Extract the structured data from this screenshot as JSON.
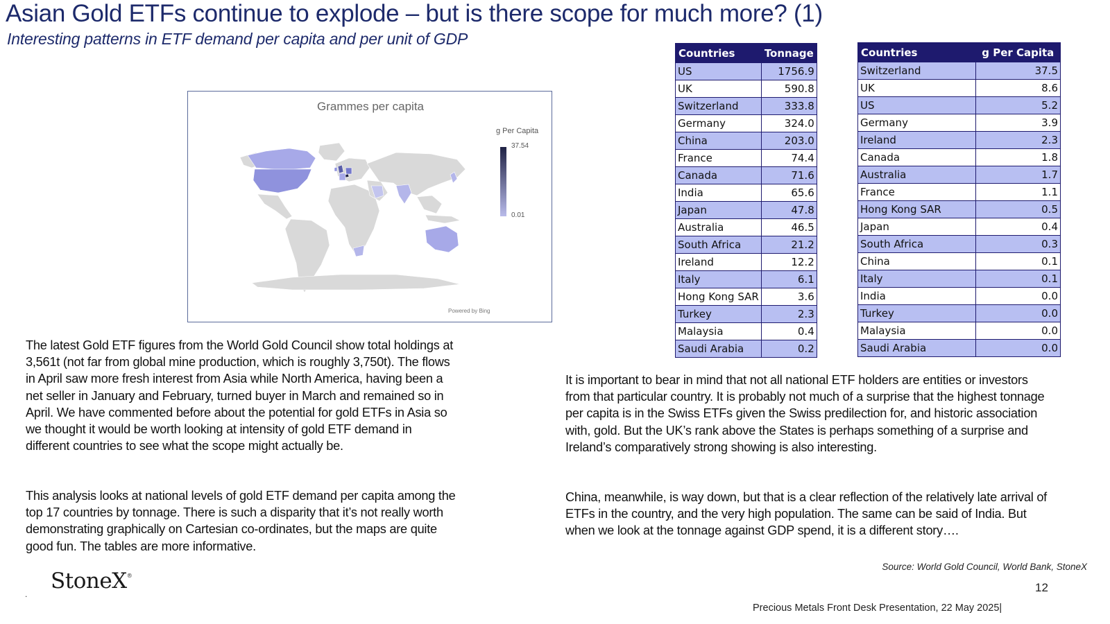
{
  "header": {
    "title": "Asian Gold ETFs continue to explode – but is there scope for much more? (1)",
    "subtitle": "Interesting patterns in ETF demand  per capita and per unit of GDP"
  },
  "map": {
    "title": "Grammes per capita",
    "legend_title": "g Per Capita",
    "legend_max": "37.54",
    "legend_min": "0.01",
    "attribution": "Powered by Bing",
    "colors": {
      "low": "#b9bbea",
      "high": "#1f2244",
      "land": "#d9d9d9"
    }
  },
  "tonnage_table": {
    "headers": [
      "Countries",
      "Tonnage"
    ],
    "rows": [
      [
        "US",
        "1756.9"
      ],
      [
        "UK",
        "590.8"
      ],
      [
        "Switzerland",
        "333.8"
      ],
      [
        "Germany",
        "324.0"
      ],
      [
        "China",
        "203.0"
      ],
      [
        "France",
        "74.4"
      ],
      [
        "Canada",
        "71.6"
      ],
      [
        "India",
        "65.6"
      ],
      [
        "Japan",
        "47.8"
      ],
      [
        "Australia",
        "46.5"
      ],
      [
        "South Africa",
        "21.2"
      ],
      [
        "Ireland",
        "12.2"
      ],
      [
        "Italy",
        "6.1"
      ],
      [
        "Hong Kong SAR",
        "3.6"
      ],
      [
        "Turkey",
        "2.3"
      ],
      [
        "Malaysia",
        "0.4"
      ],
      [
        "Saudi Arabia",
        "0.2"
      ]
    ]
  },
  "per_capita_table": {
    "headers": [
      "Countries",
      "g Per Capita"
    ],
    "rows": [
      [
        "Switzerland",
        "37.5"
      ],
      [
        "UK",
        "8.6"
      ],
      [
        "US",
        "5.2"
      ],
      [
        "Germany",
        "3.9"
      ],
      [
        "Ireland",
        "2.3"
      ],
      [
        "Canada",
        "1.8"
      ],
      [
        "Australia",
        "1.7"
      ],
      [
        "France",
        "1.1"
      ],
      [
        "Hong Kong SAR",
        "0.5"
      ],
      [
        "Japan",
        "0.4"
      ],
      [
        "South Africa",
        "0.3"
      ],
      [
        "China",
        "0.1"
      ],
      [
        "Italy",
        "0.1"
      ],
      [
        "India",
        "0.0"
      ],
      [
        "Turkey",
        "0.0"
      ],
      [
        "Malaysia",
        "0.0"
      ],
      [
        "Saudi Arabia",
        "0.0"
      ]
    ]
  },
  "body": {
    "left_p1": "The latest Gold ETF figures from the World Gold Council show total holdings at 3,561t (not far from global mine production, which is roughly 3,750t).  The flows in April saw more fresh interest from Asia while North America, having been a net seller in January and February, turned buyer in March and remained so in April.    We have commented before about the potential for gold ETFs in Asia so we thought it would be worth looking at intensity of gold ETF demand in different countries to see what the scope might actually be.",
    "left_p2": "This analysis looks at national levels of gold ETF demand per capita among the top 17 countries by tonnage.  There is such a disparity that it’s not really worth demonstrating graphically on Cartesian co-ordinates, but the maps are quite good fun. The tables are more informative.",
    "right_p1": "It is important to bear in mind that not all national ETF holders are entities or investors from that particular country.  It is probably not much of a surprise that the highest tonnage per capita is in the Swiss ETFs given the Swiss predilection for, and historic association with, gold.  But the UK’s rank above the States is perhaps something of a surprise and Ireland’s comparatively strong showing is also interesting.",
    "right_p2": "China, meanwhile, is way down,  but that is a clear reflection of the relatively late arrival of ETFs in the country, and the very high population.  The same can be said of India.  But when we look at the tonnage against GDP spend, it is a different story…."
  },
  "footer": {
    "source": "Source: World Gold Council, World Bank, StoneX",
    "logo": "StoneX",
    "logo_mark": "®",
    "dot": ".",
    "page_number": "12",
    "presentation": "Precious Metals Front Desk Presentation, 22 May 2025|"
  }
}
